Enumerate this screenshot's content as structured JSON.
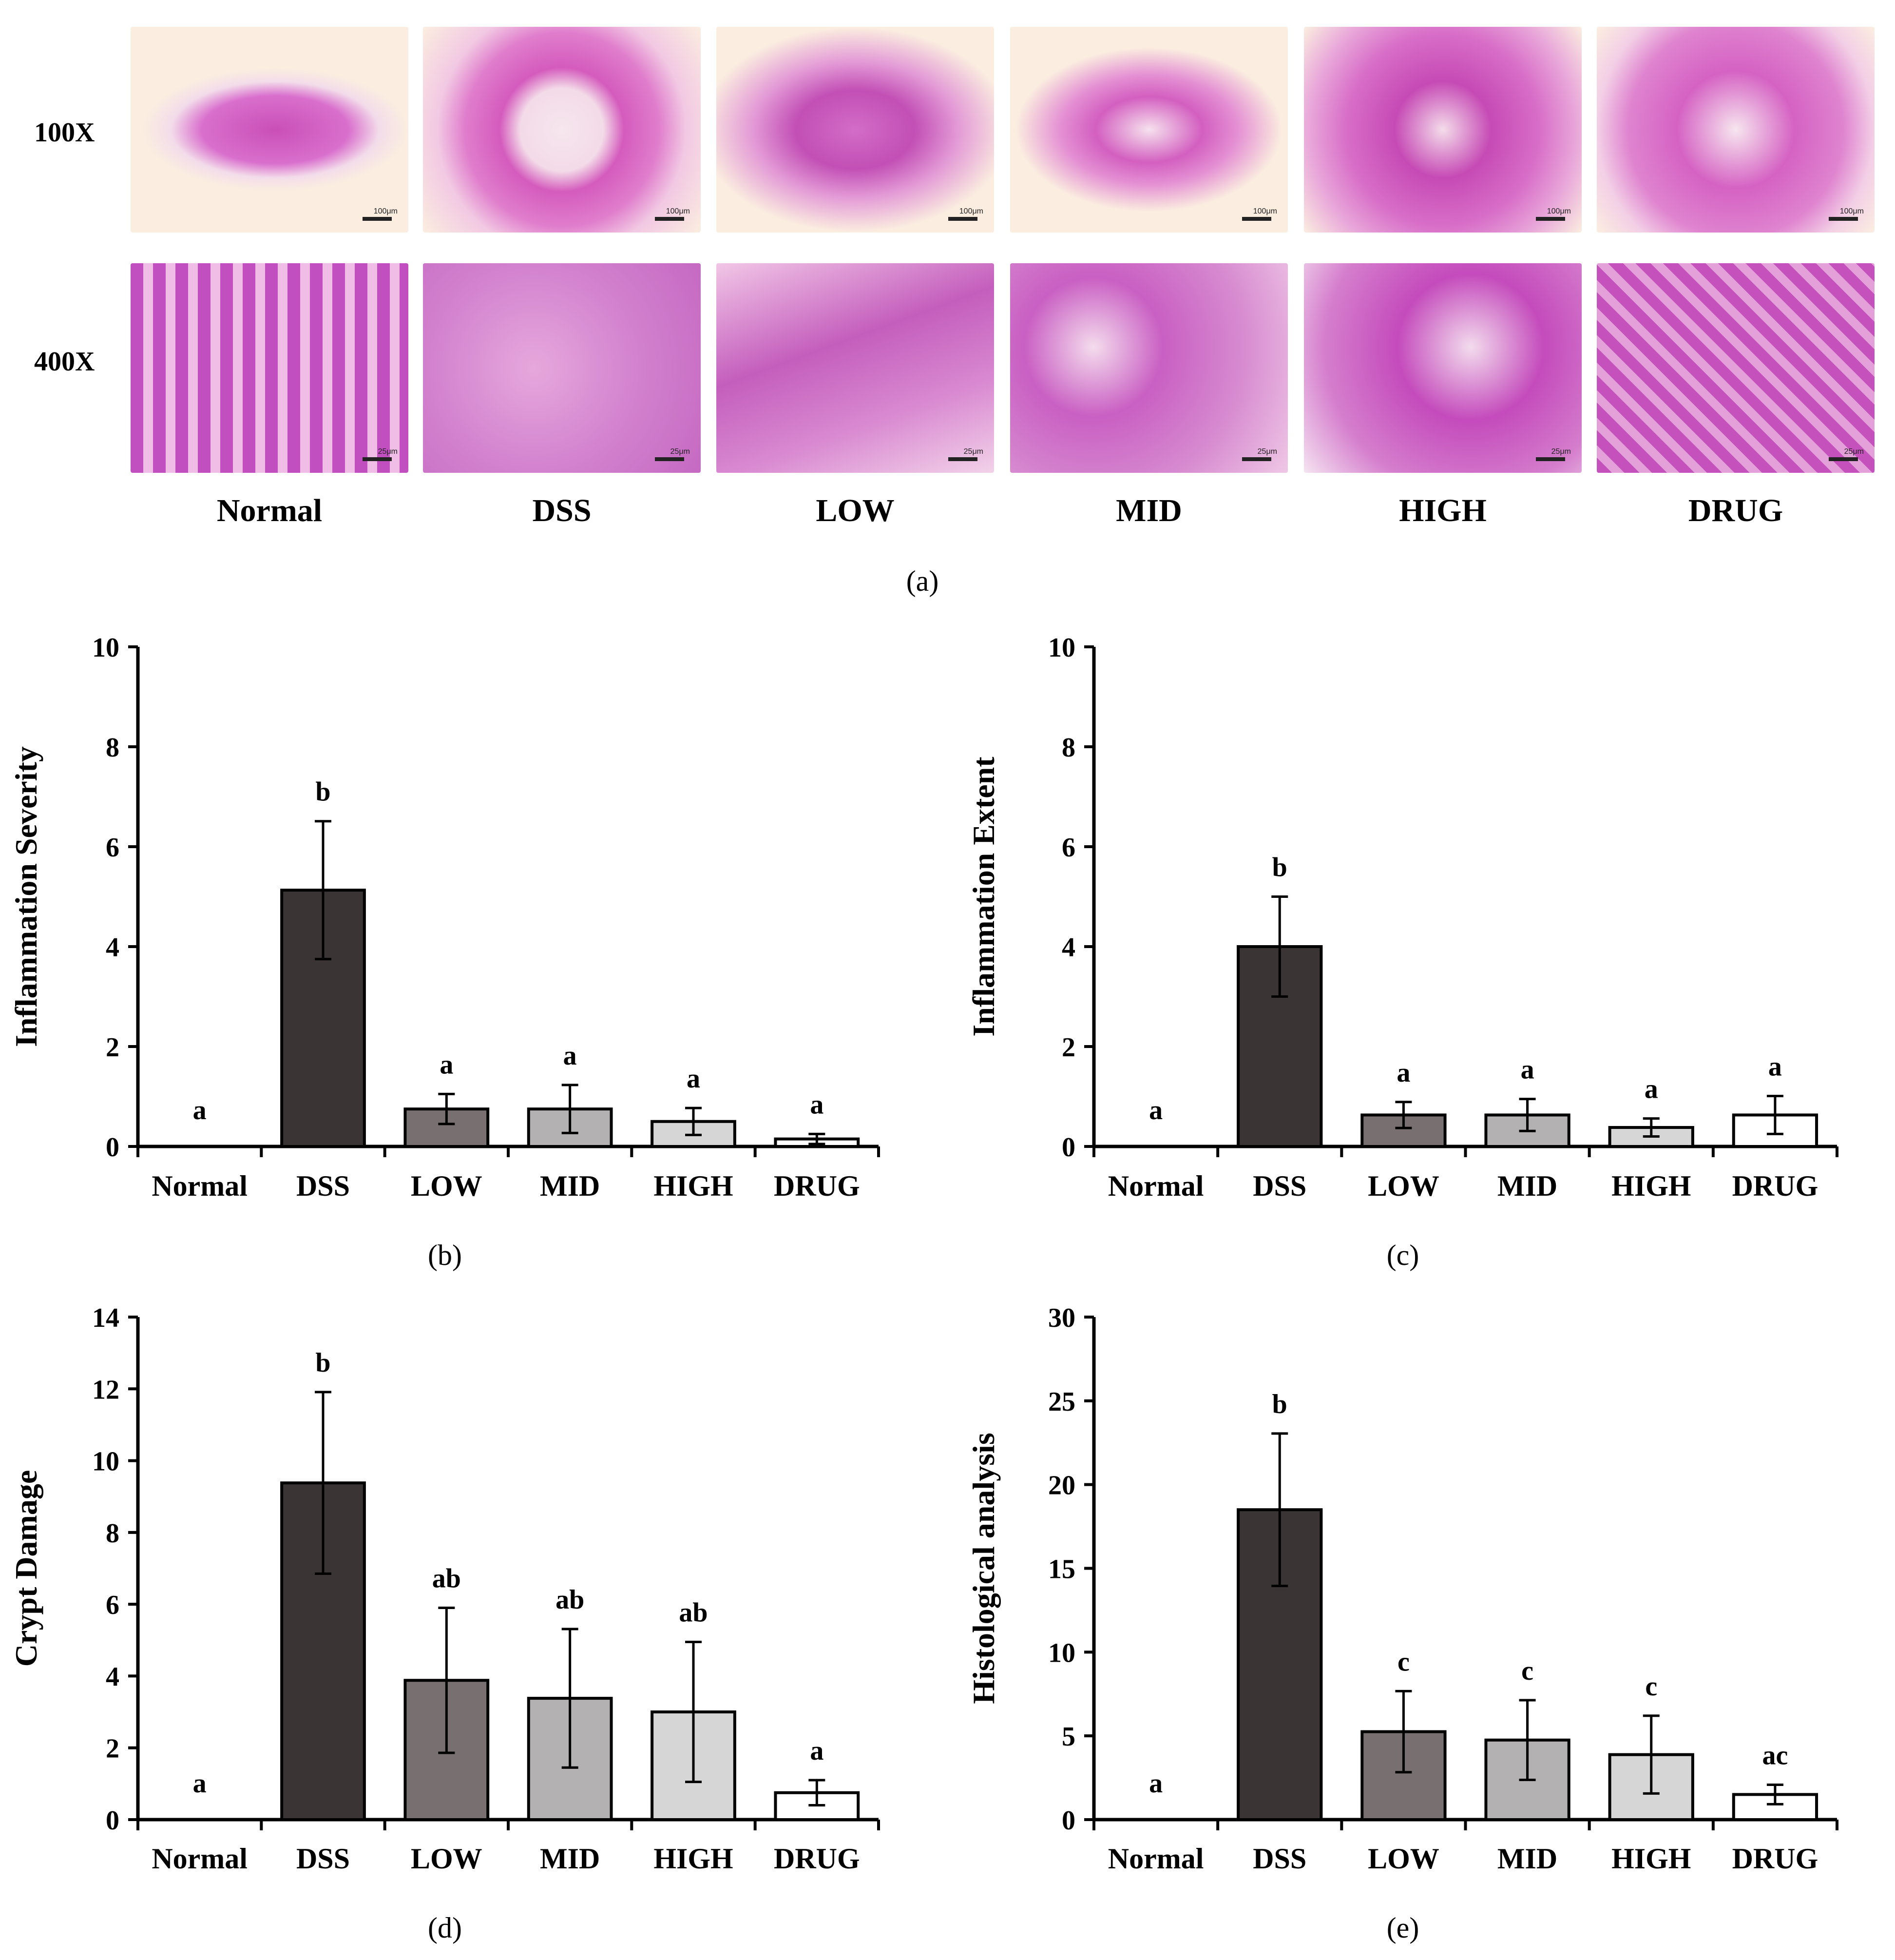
{
  "micrographs": {
    "row_labels": [
      "100X",
      "400X"
    ],
    "group_labels": [
      "Normal",
      "DSS",
      "LOW",
      "MID",
      "HIGH",
      "DRUG"
    ],
    "scale_100x": "100μm",
    "scale_400x": "25μm",
    "panel_label": "(a)"
  },
  "chart_data": [
    {
      "id": "b",
      "type": "bar",
      "panel_label": "(b)",
      "ylabel": "Inflammation Severity",
      "ylim": [
        0,
        10
      ],
      "yticks": [
        0,
        2,
        4,
        6,
        8,
        10
      ],
      "categories": [
        "Normal",
        "DSS",
        "LOW",
        "MID",
        "HIGH",
        "DRUG"
      ],
      "values": [
        0,
        5.13,
        0.75,
        0.75,
        0.5,
        0.15
      ],
      "errors": [
        0,
        1.38,
        0.3,
        0.48,
        0.27,
        0.1
      ],
      "sig_labels": [
        "a",
        "b",
        "a",
        "a",
        "a",
        "a"
      ],
      "bar_colors": [
        "#ffffff",
        "#3b3434",
        "#787070",
        "#b3b1b1",
        "#d6d6d6",
        "#ffffff"
      ]
    },
    {
      "id": "c",
      "type": "bar",
      "panel_label": "(c)",
      "ylabel": "Inflammation Extent",
      "ylim": [
        0,
        10
      ],
      "yticks": [
        0,
        2,
        4,
        6,
        8,
        10
      ],
      "categories": [
        "Normal",
        "DSS",
        "LOW",
        "MID",
        "HIGH",
        "DRUG"
      ],
      "values": [
        0,
        4.0,
        0.63,
        0.63,
        0.38,
        0.63
      ],
      "errors": [
        0,
        1.0,
        0.26,
        0.32,
        0.18,
        0.38
      ],
      "sig_labels": [
        "a",
        "b",
        "a",
        "a",
        "a",
        "a"
      ],
      "bar_colors": [
        "#ffffff",
        "#3b3434",
        "#787070",
        "#b3b1b1",
        "#d6d6d6",
        "#ffffff"
      ]
    },
    {
      "id": "d",
      "type": "bar",
      "panel_label": "(d)",
      "ylabel": "Crypt Damage",
      "ylim": [
        0,
        14
      ],
      "yticks": [
        0,
        2,
        4,
        6,
        8,
        10,
        12,
        14
      ],
      "categories": [
        "Normal",
        "DSS",
        "LOW",
        "MID",
        "HIGH",
        "DRUG"
      ],
      "values": [
        0,
        9.38,
        3.88,
        3.38,
        3.0,
        0.75
      ],
      "errors": [
        0,
        2.53,
        2.02,
        1.93,
        1.95,
        0.35
      ],
      "sig_labels": [
        "a",
        "b",
        "ab",
        "ab",
        "ab",
        "a"
      ],
      "bar_colors": [
        "#ffffff",
        "#3b3434",
        "#787070",
        "#b3b1b1",
        "#d6d6d6",
        "#ffffff"
      ]
    },
    {
      "id": "e",
      "type": "bar",
      "panel_label": "(e)",
      "ylabel": "Histological analysis",
      "ylim": [
        0,
        30
      ],
      "yticks": [
        0,
        5,
        10,
        15,
        20,
        25,
        30
      ],
      "categories": [
        "Normal",
        "DSS",
        "LOW",
        "MID",
        "HIGH",
        "DRUG"
      ],
      "values": [
        0,
        18.5,
        5.25,
        4.75,
        3.88,
        1.5
      ],
      "errors": [
        0,
        4.55,
        2.42,
        2.38,
        2.32,
        0.58
      ],
      "sig_labels": [
        "a",
        "b",
        "c",
        "c",
        "c",
        "ac"
      ],
      "bar_colors": [
        "#ffffff",
        "#3b3434",
        "#787070",
        "#b3b1b1",
        "#d6d6d6",
        "#ffffff"
      ]
    }
  ]
}
